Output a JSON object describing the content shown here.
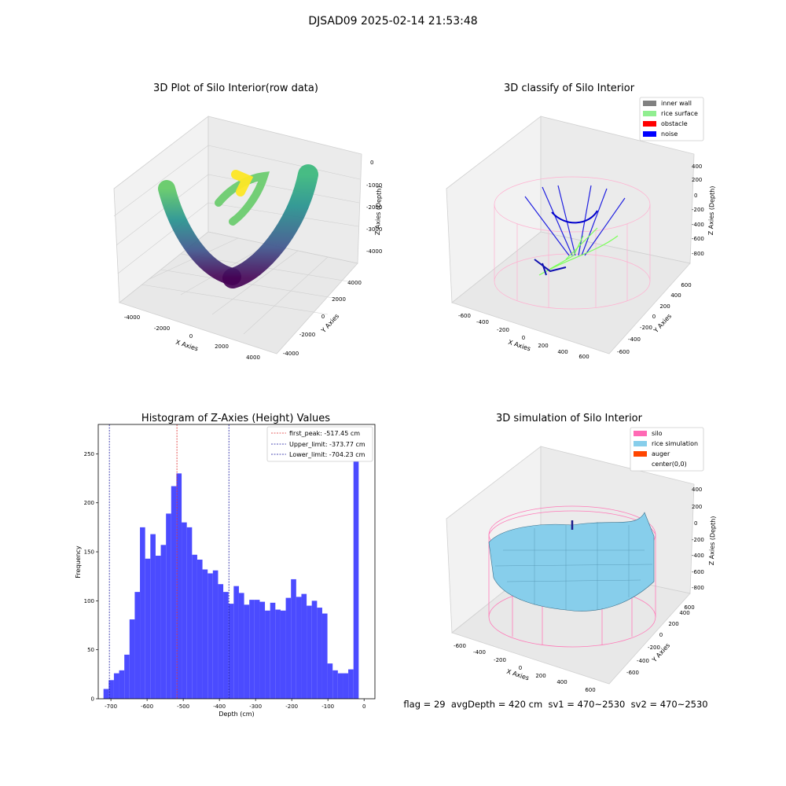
{
  "figure": {
    "suptitle": "DJSAD09 2025-02-14 21:53:48",
    "status_line": "flag = 29  avgDepth = 420 cm  sv1 = 470~2530  sv2 = 470~2530"
  },
  "colors": {
    "histogram_bar": "#4b4bff",
    "first_peak_line": "#e03030",
    "limit_line": "#1a1aa0",
    "inner_wall": "#808080",
    "rice_surface": "#90ee90",
    "obstacle": "#ff0000",
    "noise": "#0000ff",
    "silo": "#ff69b4",
    "rice_simulation": "#87ceeb",
    "auger": "#ff4500",
    "viridis": [
      "#440154",
      "#3b528b",
      "#21918c",
      "#5ec962",
      "#fde725"
    ]
  },
  "panel_raw": {
    "title": "3D Plot of Silo Interior(row data)",
    "x_label": "X Axies",
    "y_label": "Y Axies",
    "z_label": "Z Axies (Depth)",
    "x_ticks": [
      "-4000",
      "-2000",
      "0",
      "2000",
      "4000"
    ],
    "y_ticks": [
      "-4000",
      "-2000",
      "0",
      "2000",
      "4000"
    ],
    "z_ticks": [
      "0",
      "-1000",
      "-2000",
      "-3000",
      "-4000"
    ]
  },
  "panel_classify": {
    "title": "3D classify of Silo Interior",
    "x_label": "X Axies",
    "y_label": "Y Axies",
    "z_label": "Z Axies (Depth)",
    "x_ticks": [
      "-600",
      "-400",
      "-200",
      "0",
      "200",
      "400",
      "600"
    ],
    "y_ticks": [
      "-600",
      "-400",
      "-200",
      "0",
      "200",
      "400",
      "600"
    ],
    "z_ticks": [
      "400",
      "200",
      "0",
      "-200",
      "-400",
      "-600",
      "-800"
    ],
    "legend": [
      {
        "label": "inner wall",
        "color_key": "inner_wall"
      },
      {
        "label": "rice surface",
        "color_key": "rice_surface"
      },
      {
        "label": "obstacle",
        "color_key": "obstacle"
      },
      {
        "label": "noise",
        "color_key": "noise"
      }
    ]
  },
  "panel_sim": {
    "title": "3D simulation of Silo Interior",
    "x_label": "X Axies",
    "y_label": "Y Axies",
    "z_label": "Z Axies (Depth)",
    "x_ticks": [
      "-600",
      "-400",
      "-200",
      "0",
      "200",
      "400",
      "600"
    ],
    "y_ticks": [
      "-600",
      "-400",
      "-200",
      "0",
      "200",
      "400",
      "600"
    ],
    "z_ticks": [
      "400",
      "200",
      "0",
      "-200",
      "-400",
      "-600",
      "-800"
    ],
    "legend": [
      {
        "label": "silo",
        "color_key": "silo"
      },
      {
        "label": "rice simulation",
        "color_key": "rice_simulation"
      },
      {
        "label": "auger",
        "color_key": "auger"
      },
      {
        "label": "center(0,0)",
        "color_key": ""
      }
    ]
  },
  "chart_data": [
    {
      "type": "bar",
      "title": "Histogram of Z-Axies (Height) Values",
      "xlabel": "Depth (cm)",
      "ylabel": "Frequency",
      "xlim": [
        -735,
        30
      ],
      "ylim": [
        0,
        280
      ],
      "x_ticks": [
        -700,
        -600,
        -500,
        -400,
        -300,
        -200,
        -100,
        0
      ],
      "y_ticks": [
        0,
        50,
        100,
        150,
        200,
        250
      ],
      "bin_start": -720.5,
      "bin_width": 14.4,
      "values": [
        10,
        19,
        26,
        29,
        45,
        81,
        109,
        175,
        143,
        168,
        146,
        157,
        189,
        217,
        230,
        180,
        175,
        147,
        142,
        132,
        128,
        131,
        117,
        109,
        97,
        115,
        108,
        96,
        101,
        101,
        99,
        90,
        98,
        91,
        90,
        103,
        122,
        104,
        107,
        95,
        100,
        93,
        87,
        36,
        29,
        26,
        26,
        30,
        265
      ],
      "vlines": [
        {
          "name": "first_peak: -517.45 cm",
          "x": -517.45,
          "color_key": "first_peak_line"
        },
        {
          "name": "Upper_limit: -373.77 cm",
          "x": -373.77,
          "color_key": "limit_line"
        },
        {
          "name": "Lower_limit: -704.23 cm",
          "x": -704.23,
          "color_key": "limit_line"
        }
      ],
      "legend_position": "upper right"
    }
  ]
}
